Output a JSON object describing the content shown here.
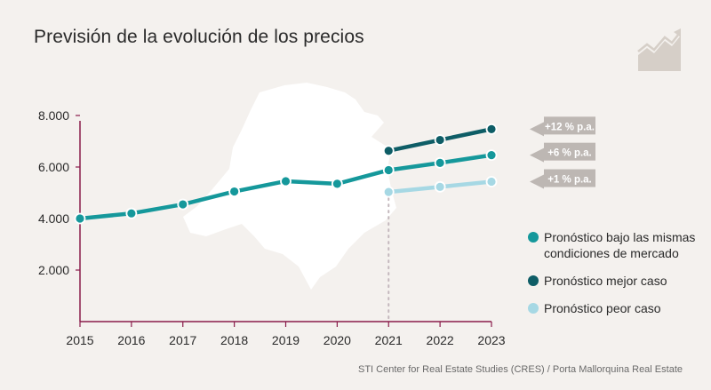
{
  "title": "Previsión de la evolución de los precios",
  "source": "STI Center for Real Estate Studies (CRES) / Porta Mallorquina Real Estate",
  "legend": [
    {
      "label_line1": "Pronóstico bajo las mismas",
      "label_line2": "condiciones de mercado",
      "color": "#15989b"
    },
    {
      "label_line1": "Pronóstico mejor caso",
      "label_line2": "",
      "color": "#0e5d66"
    },
    {
      "label_line1": "Pronóstico peor caso",
      "label_line2": "",
      "color": "#a6d8e4"
    }
  ],
  "chart_data": {
    "type": "line",
    "title": "Previsión de la evolución de los precios",
    "xlabel": "",
    "ylabel": "",
    "x_ticks": [
      "2015",
      "2016",
      "2017",
      "2018",
      "2019",
      "2020",
      "2021",
      "2022",
      "2023"
    ],
    "y_ticks": [
      "2.000",
      "4.000",
      "6.000",
      "8.000"
    ],
    "y_tick_values": [
      2000,
      4000,
      6000,
      8000
    ],
    "ylim": [
      0,
      8000
    ],
    "xlim": [
      2015,
      2023
    ],
    "grid": false,
    "forecast_divider_x": 2021,
    "series": [
      {
        "name": "Pronóstico bajo las mismas condiciones de mercado",
        "color": "#15989b",
        "x": [
          2015,
          2016,
          2017,
          2018,
          2019,
          2020,
          2021,
          2022,
          2023
        ],
        "y": [
          4000,
          4200,
          4550,
          5050,
          5450,
          5350,
          5880,
          6160,
          6460
        ],
        "annotation": "+6 % p.a."
      },
      {
        "name": "Pronóstico mejor caso",
        "color": "#0e5d66",
        "x": [
          2021,
          2022,
          2023
        ],
        "y": [
          6630,
          7050,
          7470
        ],
        "annotation": "+12 % p.a."
      },
      {
        "name": "Pronóstico peor caso",
        "color": "#a6d8e4",
        "x": [
          2021,
          2022,
          2023
        ],
        "y": [
          5030,
          5230,
          5430
        ],
        "annotation": "+1 % p.a."
      }
    ]
  }
}
